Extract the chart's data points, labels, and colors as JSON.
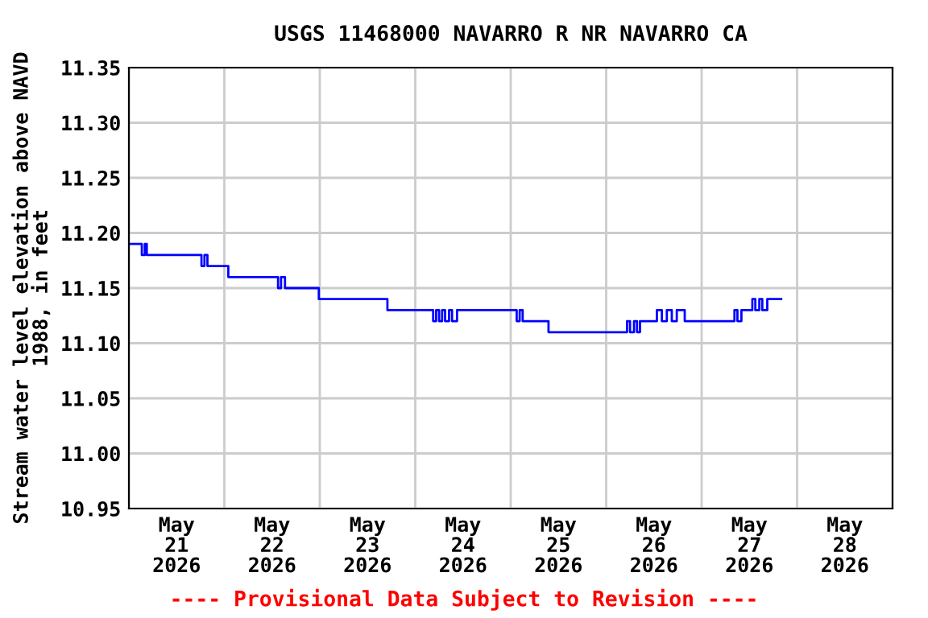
{
  "chart_data": {
    "type": "step",
    "title": "USGS 11468000 NAVARRO R NR NAVARRO CA",
    "ylabel": "Stream water level elevation above NAVD\n1988, in feet",
    "annotations": [
      "---- Provisional Data Subject to Revision ----"
    ],
    "x": [
      "2026-05-21T00:00",
      "2026-05-21T03:15",
      "2026-05-21T04:00",
      "2026-05-21T04:30",
      "2026-05-21T18:15",
      "2026-05-21T19:00",
      "2026-05-21T19:45",
      "2026-05-22T01:00",
      "2026-05-22T13:30",
      "2026-05-22T14:15",
      "2026-05-22T15:15",
      "2026-05-22T23:45",
      "2026-05-23T17:00",
      "2026-05-24T04:30",
      "2026-05-24T05:15",
      "2026-05-24T06:00",
      "2026-05-24T06:45",
      "2026-05-24T07:30",
      "2026-05-24T08:30",
      "2026-05-24T09:15",
      "2026-05-24T10:30",
      "2026-05-25T01:30",
      "2026-05-25T02:15",
      "2026-05-25T03:00",
      "2026-05-25T03:45",
      "2026-05-25T09:30",
      "2026-05-26T05:15",
      "2026-05-26T06:00",
      "2026-05-26T07:00",
      "2026-05-26T07:45",
      "2026-05-26T08:30",
      "2026-05-26T12:45",
      "2026-05-26T14:00",
      "2026-05-26T15:15",
      "2026-05-26T16:30",
      "2026-05-26T17:45",
      "2026-05-26T19:00",
      "2026-05-26T19:45",
      "2026-05-27T08:15",
      "2026-05-27T09:00",
      "2026-05-27T10:00",
      "2026-05-27T12:45",
      "2026-05-27T13:30",
      "2026-05-27T14:30",
      "2026-05-27T15:15",
      "2026-05-27T16:30",
      "2026-05-27T20:00"
    ],
    "series": [
      {
        "color": "#0000ff",
        "values": [
          11.19,
          11.18,
          11.19,
          11.18,
          11.17,
          11.18,
          11.17,
          11.16,
          11.15,
          11.16,
          11.15,
          11.14,
          11.13,
          11.12,
          11.13,
          11.12,
          11.13,
          11.12,
          11.13,
          11.12,
          11.13,
          11.12,
          11.13,
          11.12,
          11.12,
          11.11,
          11.12,
          11.11,
          11.12,
          11.11,
          11.12,
          11.13,
          11.12,
          11.13,
          11.12,
          11.13,
          11.13,
          11.12,
          11.13,
          11.12,
          11.13,
          11.14,
          11.13,
          11.14,
          11.13,
          11.14,
          11.14
        ]
      }
    ],
    "xlim": [
      "2026-05-21T00:00",
      "2026-05-29T00:00"
    ],
    "xticks": [
      {
        "value": "2026-05-21T00:00",
        "label": null
      },
      {
        "value": "2026-05-21T12:00",
        "label": "May\n21\n2026"
      },
      {
        "value": "2026-05-22T00:00",
        "label": null
      },
      {
        "value": "2026-05-22T12:00",
        "label": "May\n22\n2026"
      },
      {
        "value": "2026-05-23T00:00",
        "label": null
      },
      {
        "value": "2026-05-23T12:00",
        "label": "May\n23\n2026"
      },
      {
        "value": "2026-05-24T00:00",
        "label": null
      },
      {
        "value": "2026-05-24T12:00",
        "label": "May\n24\n2026"
      },
      {
        "value": "2026-05-25T00:00",
        "label": null
      },
      {
        "value": "2026-05-25T12:00",
        "label": "May\n25\n2026"
      },
      {
        "value": "2026-05-26T00:00",
        "label": null
      },
      {
        "value": "2026-05-26T12:00",
        "label": "May\n26\n2026"
      },
      {
        "value": "2026-05-27T00:00",
        "label": null
      },
      {
        "value": "2026-05-27T12:00",
        "label": "May\n27\n2026"
      },
      {
        "value": "2026-05-28T00:00",
        "label": null
      },
      {
        "value": "2026-05-28T12:00",
        "label": "May\n28\n2026"
      },
      {
        "value": "2026-05-29T00:00",
        "label": null
      }
    ],
    "ylim": [
      10.95,
      11.35
    ],
    "yticks": [
      {
        "value": 10.95,
        "label": "10.95"
      },
      {
        "value": 11.0,
        "label": "11.00"
      },
      {
        "value": 11.05,
        "label": "11.05"
      },
      {
        "value": 11.1,
        "label": "11.10"
      },
      {
        "value": 11.15,
        "label": "11.15"
      },
      {
        "value": 11.2,
        "label": "11.20"
      },
      {
        "value": 11.25,
        "label": "11.25"
      },
      {
        "value": 11.3,
        "label": "11.30"
      },
      {
        "value": 11.35,
        "label": "11.35"
      }
    ],
    "grid": true
  }
}
